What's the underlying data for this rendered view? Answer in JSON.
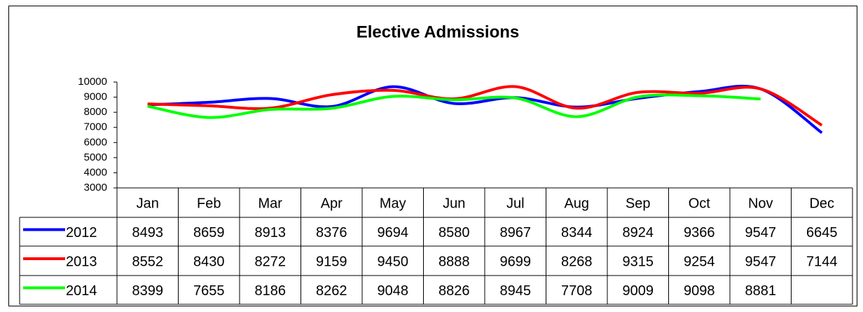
{
  "chart_data": {
    "type": "line",
    "title": "Elective Admissions",
    "categories": [
      "Jan",
      "Feb",
      "Mar",
      "Apr",
      "May",
      "Jun",
      "Jul",
      "Aug",
      "Sep",
      "Oct",
      "Nov",
      "Dec"
    ],
    "series": [
      {
        "name": "2012",
        "color": "#0000ff",
        "values": [
          8493,
          8659,
          8913,
          8376,
          9694,
          8580,
          8967,
          8344,
          8924,
          9366,
          9547,
          6645
        ]
      },
      {
        "name": "2013",
        "color": "#ff0000",
        "values": [
          8552,
          8430,
          8272,
          9159,
          9450,
          8888,
          9699,
          8268,
          9315,
          9254,
          9547,
          7144
        ]
      },
      {
        "name": "2014",
        "color": "#00ff00",
        "values": [
          8399,
          7655,
          8186,
          8262,
          9048,
          8826,
          8945,
          7708,
          9009,
          9098,
          8881,
          null
        ]
      }
    ],
    "ylim": [
      3000,
      10000
    ],
    "yticks": [
      3000,
      4000,
      5000,
      6000,
      7000,
      8000,
      9000,
      10000
    ],
    "smooth": true
  }
}
